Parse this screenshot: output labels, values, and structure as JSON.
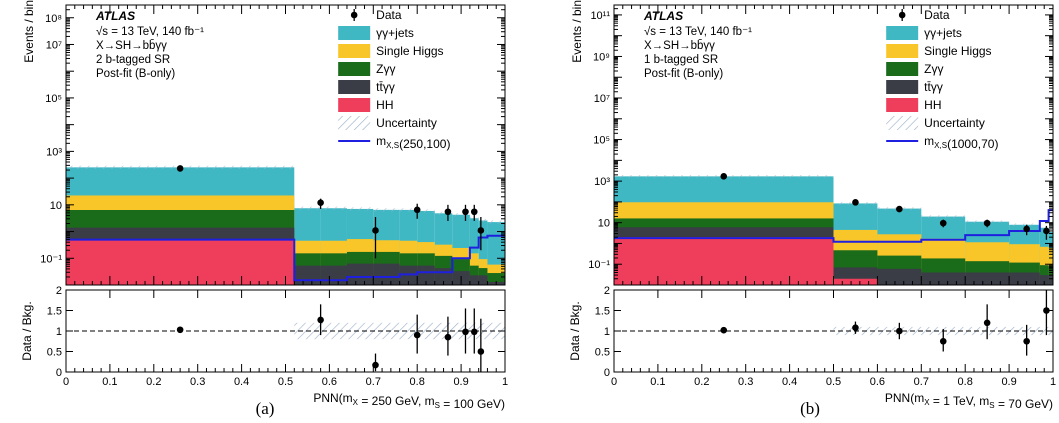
{
  "colors": {
    "gg_jets": "#3fb8c4",
    "single_higgs": "#f9c62a",
    "z_gg": "#1a6b1a",
    "tt_gg": "#3a3d46",
    "hh": "#ee3e5c",
    "signal": "#1f1fe0",
    "uncertainty": "#9fb3cc",
    "data": "#000000"
  },
  "chart_data": [
    {
      "type": "bar",
      "panel": "(a)",
      "caption": "(a)",
      "title": "ATLAS",
      "info_lines": [
        "√s = 13 TeV, 140 fb⁻¹",
        "X→SH→bb̄γγ",
        "2 b-tagged SR",
        "Post-fit (B-only)"
      ],
      "ylabel": "Events / bin",
      "ratio_ylabel": "Data / Bkg.",
      "xlabel": "PNN(mX = 250 GeV, mS = 100 GeV)",
      "xlim": [
        0,
        1
      ],
      "ylim_log": [
        0.01,
        300000000
      ],
      "yticks": [
        {
          "v": 0.1,
          "label": "10⁻¹"
        },
        {
          "v": 10,
          "label": "10"
        },
        {
          "v": 1000,
          "label": "10³"
        },
        {
          "v": 100000,
          "label": "10⁵"
        },
        {
          "v": 10000000,
          "label": "10⁷"
        },
        {
          "v": 100000000,
          "label": "10⁸"
        }
      ],
      "ratio_ylim": [
        0,
        2
      ],
      "ratio_yticks": [
        "0",
        "0.5",
        "1",
        "1.5",
        "2"
      ],
      "xticks": [
        "0",
        "0.1",
        "0.2",
        "0.3",
        "0.4",
        "0.5",
        "0.6",
        "0.7",
        "0.8",
        "0.9",
        "1"
      ],
      "bin_edges": [
        0,
        0.52,
        0.58,
        0.64,
        0.7,
        0.76,
        0.8,
        0.84,
        0.88,
        0.92,
        0.94,
        0.96,
        1.0
      ],
      "stack": [
        {
          "name": "HH",
          "color_key": "hh",
          "values": [
            0.5,
            0.003,
            0.003,
            0.003,
            0.003,
            0.003,
            0.003,
            0.003,
            0.003,
            0.003,
            0.003,
            0.003
          ]
        },
        {
          "name": "tt̄γγ",
          "color_key": "tt_gg",
          "values": [
            0.9,
            0.05,
            0.05,
            0.06,
            0.06,
            0.05,
            0.05,
            0.04,
            0.03,
            0.02,
            0.02,
            0.01
          ]
        },
        {
          "name": "Zγγ",
          "color_key": "z_gg",
          "values": [
            5.0,
            0.1,
            0.1,
            0.11,
            0.11,
            0.1,
            0.1,
            0.08,
            0.06,
            0.03,
            0.02,
            0.015
          ]
        },
        {
          "name": "Single Higgs",
          "color_key": "single_higgs",
          "values": [
            16,
            0.3,
            0.3,
            0.35,
            0.3,
            0.3,
            0.25,
            0.2,
            0.15,
            0.1,
            0.05,
            0.03
          ]
        },
        {
          "name": "γγ+jets",
          "color_key": "gg_jets",
          "values": [
            230,
            7,
            7,
            6.5,
            6,
            6,
            5.5,
            4.5,
            4,
            3,
            2.5,
            2.2
          ]
        }
      ],
      "signal": {
        "name": "mX,S(250,100)",
        "values": [
          0.5,
          0.015,
          0.015,
          0.02,
          0.02,
          0.025,
          0.03,
          0.03,
          0.1,
          0.25,
          0.6,
          0.7
        ]
      },
      "data_points": [
        {
          "x": 0.26,
          "y": 230,
          "lo": 190,
          "hi": 270
        },
        {
          "x": 0.58,
          "y": 12,
          "lo": 7,
          "hi": 17
        },
        {
          "x": 0.705,
          "y": 1.1,
          "lo": 0.1,
          "hi": 3.5
        },
        {
          "x": 0.8,
          "y": 6.5,
          "lo": 3,
          "hi": 11
        },
        {
          "x": 0.87,
          "y": 5.5,
          "lo": 2.5,
          "hi": 10
        },
        {
          "x": 0.91,
          "y": 5.5,
          "lo": 2.5,
          "hi": 10
        },
        {
          "x": 0.93,
          "y": 5.5,
          "lo": 2.5,
          "hi": 10
        },
        {
          "x": 0.945,
          "y": 1.1,
          "lo": 0.2,
          "hi": 3.5
        }
      ],
      "ratio_points": [
        {
          "x": 0.26,
          "y": 1.03,
          "lo": 0.98,
          "hi": 1.08
        },
        {
          "x": 0.58,
          "y": 1.27,
          "lo": 0.9,
          "hi": 1.65
        },
        {
          "x": 0.705,
          "y": 0.17,
          "lo": 0.02,
          "hi": 0.45
        },
        {
          "x": 0.8,
          "y": 0.9,
          "lo": 0.45,
          "hi": 1.4
        },
        {
          "x": 0.87,
          "y": 0.85,
          "lo": 0.4,
          "hi": 1.35
        },
        {
          "x": 0.91,
          "y": 0.98,
          "lo": 0.45,
          "hi": 1.55
        },
        {
          "x": 0.93,
          "y": 0.98,
          "lo": 0.45,
          "hi": 1.55
        },
        {
          "x": 0.945,
          "y": 0.5,
          "lo": 0.0,
          "hi": 1.3
        }
      ],
      "ratio_band": {
        "x_from": 0.52,
        "x_to": 1.0,
        "half_width": 0.2
      },
      "legend": [
        {
          "kind": "marker",
          "label": "Data"
        },
        {
          "kind": "fill",
          "color_key": "gg_jets",
          "label": "γγ+jets"
        },
        {
          "kind": "fill",
          "color_key": "single_higgs",
          "label": "Single Higgs"
        },
        {
          "kind": "fill",
          "color_key": "z_gg",
          "label": "Zγγ"
        },
        {
          "kind": "fill",
          "color_key": "tt_gg",
          "label": "tt̄γγ"
        },
        {
          "kind": "fill",
          "color_key": "hh",
          "label": "HH"
        },
        {
          "kind": "hatch",
          "label": "Uncertainty"
        },
        {
          "kind": "line",
          "color_key": "signal",
          "label": "mX,S(250,100)"
        }
      ]
    },
    {
      "type": "bar",
      "panel": "(b)",
      "caption": "(b)",
      "title": "ATLAS",
      "info_lines": [
        "√s = 13 TeV, 140 fb⁻¹",
        "X→SH→bb̄γγ",
        "1 b-tagged SR",
        "Post-fit (B-only)"
      ],
      "ylabel": "Events / bin",
      "ratio_ylabel": "Data / Bkg.",
      "xlabel": "PNN(mX = 1 TeV, mS = 70 GeV)",
      "xlim": [
        0,
        1
      ],
      "ylim_log": [
        0.01,
        300000000000
      ],
      "yticks": [
        {
          "v": 0.1,
          "label": "10⁻¹"
        },
        {
          "v": 10,
          "label": "10"
        },
        {
          "v": 1000,
          "label": "10³"
        },
        {
          "v": 100000,
          "label": "10⁵"
        },
        {
          "v": 10000000,
          "label": "10⁷"
        },
        {
          "v": 1000000000,
          "label": "10⁹"
        },
        {
          "v": 100000000000,
          "label": "10¹¹"
        }
      ],
      "ratio_ylim": [
        0,
        2
      ],
      "ratio_yticks": [
        "0",
        "0.5",
        "1",
        "1.5",
        "2"
      ],
      "xticks": [
        "0",
        "0.1",
        "0.2",
        "0.3",
        "0.4",
        "0.5",
        "0.6",
        "0.7",
        "0.8",
        "0.9",
        "1"
      ],
      "bin_edges": [
        0,
        0.5,
        0.6,
        0.7,
        0.8,
        0.9,
        0.97,
        0.99,
        1.0
      ],
      "stack": [
        {
          "name": "HH",
          "color_key": "hh",
          "values": [
            2.0,
            0.02,
            0.01,
            0.01,
            0.01,
            0.01,
            0.01,
            0.01
          ]
        },
        {
          "name": "tt̄γγ",
          "color_key": "tt_gg",
          "values": [
            4.0,
            0.05,
            0.05,
            0.03,
            0.03,
            0.03,
            0.02,
            0.02
          ]
        },
        {
          "name": "Zγγ",
          "color_key": "z_gg",
          "values": [
            10,
            0.4,
            0.2,
            0.15,
            0.1,
            0.08,
            0.06,
            0.05
          ]
        },
        {
          "name": "Single Higgs",
          "color_key": "single_higgs",
          "values": [
            80,
            4,
            2.5,
            1.5,
            1.0,
            0.8,
            0.6,
            0.5
          ]
        },
        {
          "name": "γγ+jets",
          "color_key": "gg_jets",
          "values": [
            1600,
            80,
            45,
            18,
            10,
            7,
            5,
            3
          ]
        }
      ],
      "signal": {
        "name": "mX,S(1000,70)",
        "values": [
          1.8,
          1.2,
          1.2,
          1.5,
          2.5,
          4,
          12,
          40
        ]
      },
      "data_points": [
        {
          "x": 0.25,
          "y": 1700,
          "lo": 1550,
          "hi": 1850
        },
        {
          "x": 0.55,
          "y": 95,
          "lo": 75,
          "hi": 115
        },
        {
          "x": 0.65,
          "y": 45,
          "lo": 33,
          "hi": 58
        },
        {
          "x": 0.75,
          "y": 9.5,
          "lo": 6,
          "hi": 14
        },
        {
          "x": 0.85,
          "y": 9.5,
          "lo": 6,
          "hi": 14
        },
        {
          "x": 0.94,
          "y": 5,
          "lo": 2.5,
          "hi": 8
        },
        {
          "x": 0.985,
          "y": 4,
          "lo": 1.5,
          "hi": 7
        }
      ],
      "ratio_points": [
        {
          "x": 0.25,
          "y": 1.02,
          "lo": 0.97,
          "hi": 1.07
        },
        {
          "x": 0.55,
          "y": 1.08,
          "lo": 0.93,
          "hi": 1.23
        },
        {
          "x": 0.65,
          "y": 1.0,
          "lo": 0.8,
          "hi": 1.2
        },
        {
          "x": 0.75,
          "y": 0.75,
          "lo": 0.5,
          "hi": 1.05
        },
        {
          "x": 0.85,
          "y": 1.2,
          "lo": 0.8,
          "hi": 1.65
        },
        {
          "x": 0.94,
          "y": 0.75,
          "lo": 0.4,
          "hi": 1.15
        },
        {
          "x": 0.985,
          "y": 1.5,
          "lo": 0.9,
          "hi": 2.0
        }
      ],
      "ratio_band": {
        "x_from": 0.5,
        "x_to": 1.0,
        "half_width": 0.1
      },
      "legend": [
        {
          "kind": "marker",
          "label": "Data"
        },
        {
          "kind": "fill",
          "color_key": "gg_jets",
          "label": "γγ+jets"
        },
        {
          "kind": "fill",
          "color_key": "single_higgs",
          "label": "Single Higgs"
        },
        {
          "kind": "fill",
          "color_key": "z_gg",
          "label": "Zγγ"
        },
        {
          "kind": "fill",
          "color_key": "tt_gg",
          "label": "tt̄γγ"
        },
        {
          "kind": "fill",
          "color_key": "hh",
          "label": "HH"
        },
        {
          "kind": "hatch",
          "label": "Uncertainty"
        },
        {
          "kind": "line",
          "color_key": "signal",
          "label": "mX,S(1000,70)"
        }
      ]
    }
  ]
}
